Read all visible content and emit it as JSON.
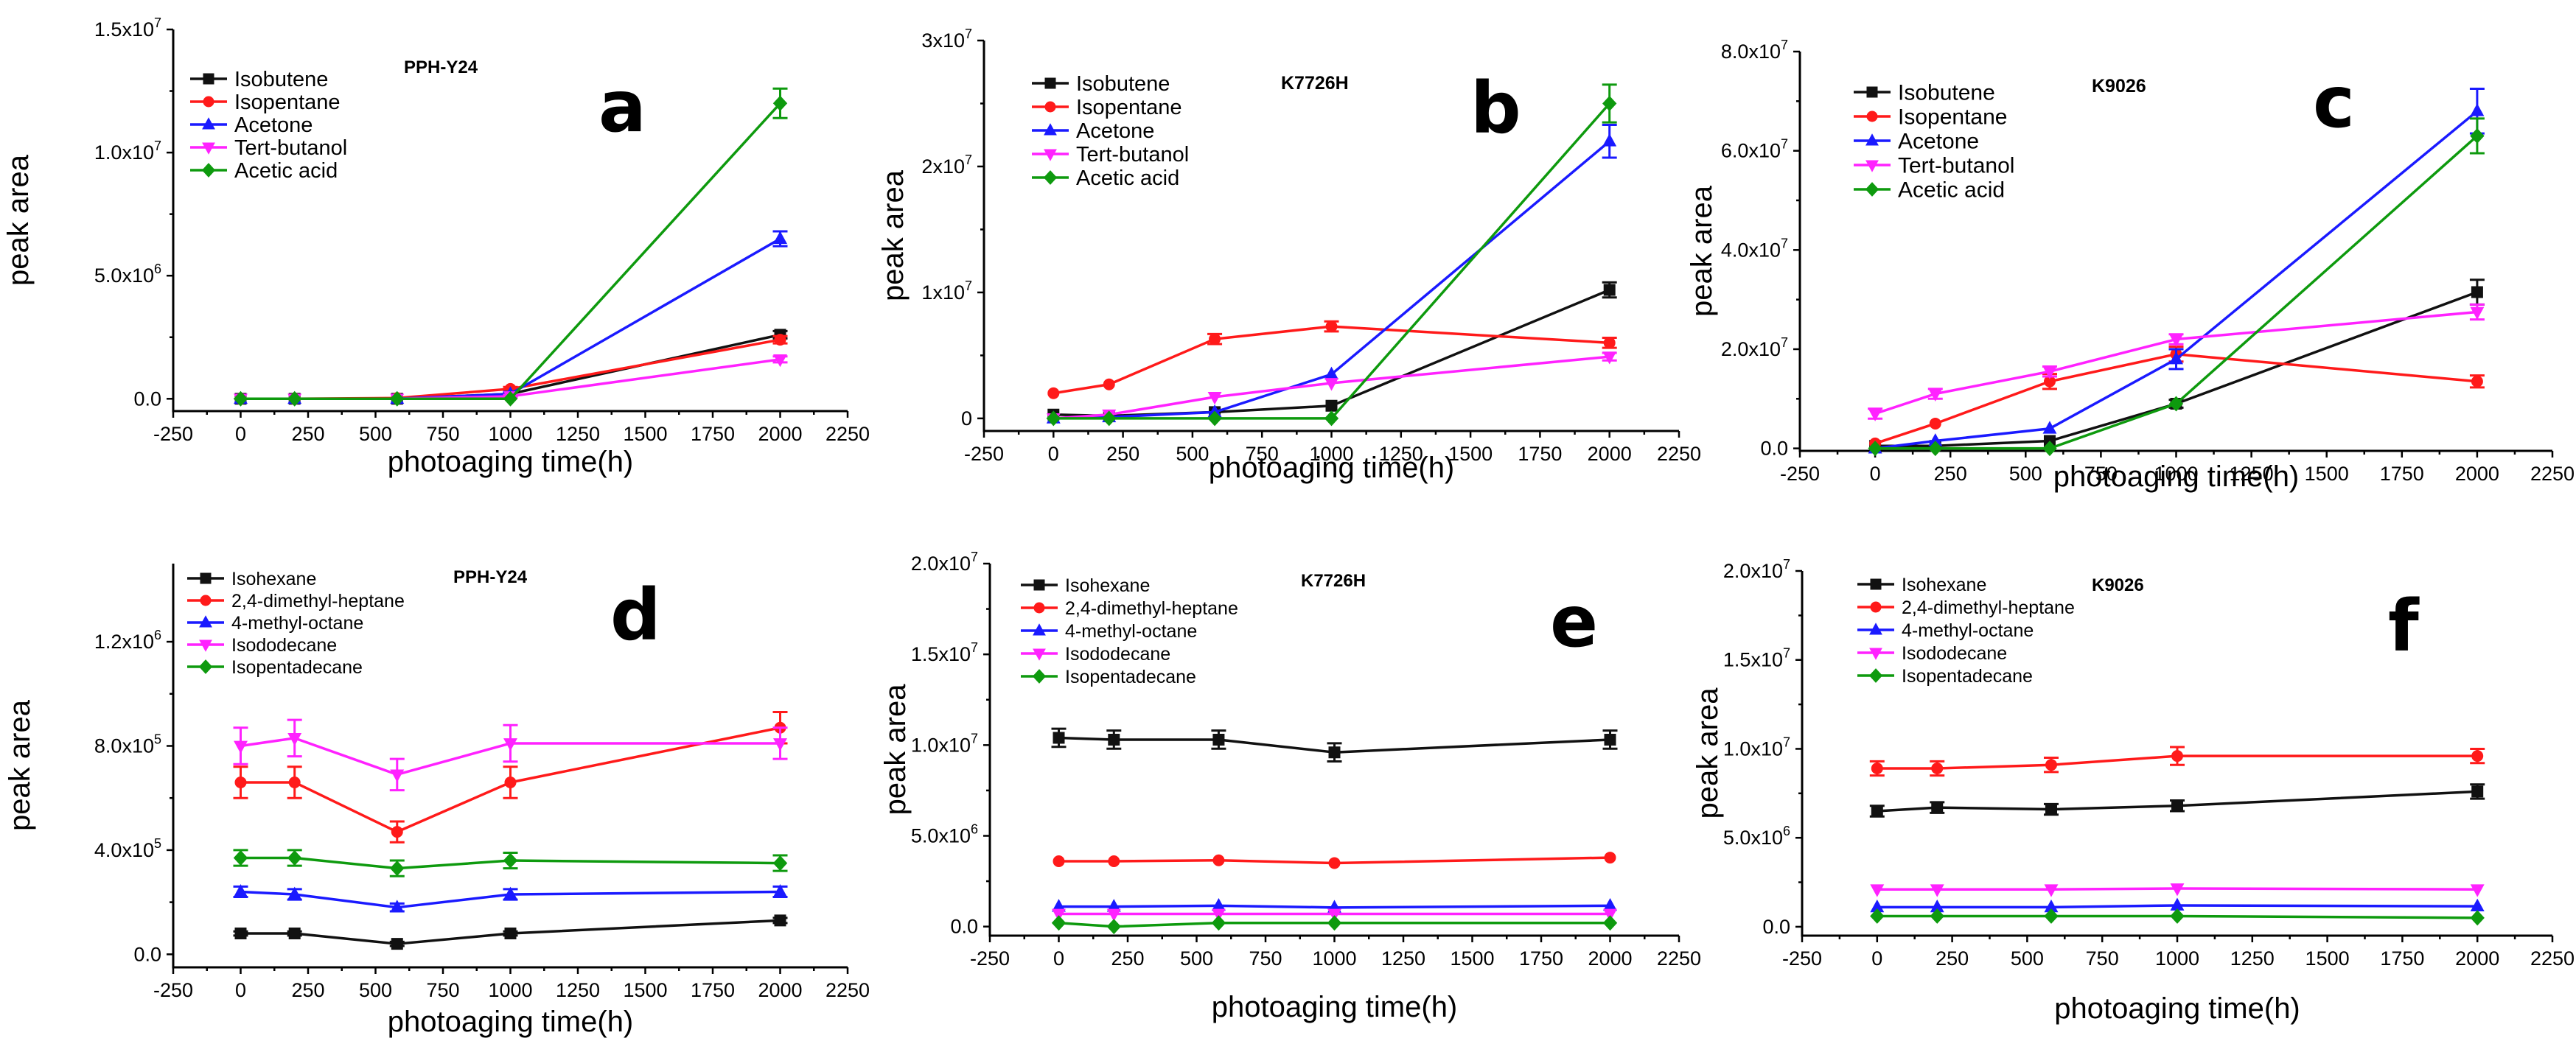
{
  "colors": {
    "black": "#111111",
    "red": "#ff1a1a",
    "blue": "#1a1aff",
    "magenta": "#ff22ff",
    "green": "#0e9a0e"
  },
  "chart_data": [
    {
      "type": "line",
      "panel_letter": "a",
      "sample": "PPH-Y24",
      "xlabel": "photoaging time(h)",
      "ylabel": "peak area",
      "xlim": [
        -250,
        2250
      ],
      "ylim": [
        -500000,
        15000000
      ],
      "x_ticks": [
        -250,
        0,
        250,
        500,
        750,
        1000,
        1250,
        1500,
        1750,
        2000,
        2250
      ],
      "x_tick_labels": [
        "-250",
        "0",
        "250",
        "500",
        "750",
        "1000",
        "1250",
        "1500",
        "1750",
        "2000",
        "2250"
      ],
      "y_ticks": [
        0,
        5000000,
        10000000,
        15000000
      ],
      "y_tick_labels": [
        {
          "m": "0.0",
          "e": ""
        },
        {
          "m": "5.0x10",
          "e": "6"
        },
        {
          "m": "1.0x10",
          "e": "7"
        },
        {
          "m": "1.5x10",
          "e": "7"
        }
      ],
      "x": [
        0,
        200,
        580,
        1000,
        2000
      ],
      "series": [
        {
          "name": "Isobutene",
          "color": "black",
          "marker": "square",
          "values": [
            0,
            0,
            0,
            200000,
            2600000
          ],
          "errors": [
            0,
            0,
            0,
            80000,
            150000
          ]
        },
        {
          "name": "Isopentane",
          "color": "red",
          "marker": "circle",
          "values": [
            0,
            0,
            30000,
            400000,
            2400000
          ],
          "errors": [
            0,
            0,
            0,
            80000,
            150000
          ]
        },
        {
          "name": "Acetone",
          "color": "blue",
          "marker": "triangle-up",
          "values": [
            0,
            0,
            0,
            200000,
            6500000
          ],
          "errors": [
            0,
            0,
            0,
            80000,
            300000
          ]
        },
        {
          "name": "Tert-butanol",
          "color": "magenta",
          "marker": "triangle-down",
          "values": [
            0,
            0,
            0,
            100000,
            1600000
          ],
          "errors": [
            0,
            0,
            0,
            60000,
            120000
          ]
        },
        {
          "name": "Acetic acid",
          "color": "green",
          "marker": "diamond",
          "values": [
            0,
            0,
            0,
            0,
            12000000
          ],
          "errors": [
            0,
            0,
            0,
            0,
            600000
          ]
        }
      ]
    },
    {
      "type": "line",
      "panel_letter": "b",
      "sample": "K7726H",
      "xlabel": "photoaging time(h)",
      "ylabel": "peak area",
      "xlim": [
        -250,
        2250
      ],
      "ylim": [
        -1000000,
        30000000
      ],
      "x_ticks": [
        -250,
        0,
        250,
        500,
        750,
        1000,
        1250,
        1500,
        1750,
        2000,
        2250
      ],
      "x_tick_labels": [
        "-250",
        "0",
        "250",
        "500",
        "750",
        "1000",
        "1250",
        "1500",
        "1750",
        "2000",
        "2250"
      ],
      "y_ticks": [
        0,
        10000000,
        20000000,
        30000000
      ],
      "y_tick_labels": [
        {
          "m": "0",
          "e": ""
        },
        {
          "m": "1x10",
          "e": "7"
        },
        {
          "m": "2x10",
          "e": "7"
        },
        {
          "m": "3x10",
          "e": "7"
        }
      ],
      "x": [
        0,
        200,
        580,
        1000,
        2000
      ],
      "series": [
        {
          "name": "Isobutene",
          "color": "black",
          "marker": "square",
          "values": [
            300000,
            200000,
            500000,
            1000000,
            10200000
          ],
          "errors": [
            0,
            0,
            0,
            0,
            600000
          ]
        },
        {
          "name": "Isopentane",
          "color": "red",
          "marker": "circle",
          "values": [
            2000000,
            2700000,
            6300000,
            7300000,
            6000000
          ],
          "errors": [
            0,
            0,
            400000,
            400000,
            400000
          ]
        },
        {
          "name": "Acetone",
          "color": "blue",
          "marker": "triangle-up",
          "values": [
            0,
            100000,
            500000,
            3500000,
            22000000
          ],
          "errors": [
            0,
            0,
            0,
            0,
            1300000
          ]
        },
        {
          "name": "Tert-butanol",
          "color": "magenta",
          "marker": "triangle-down",
          "values": [
            0,
            300000,
            1700000,
            2800000,
            4900000
          ],
          "errors": [
            0,
            0,
            0,
            0,
            300000
          ]
        },
        {
          "name": "Acetic acid",
          "color": "green",
          "marker": "diamond",
          "values": [
            0,
            0,
            0,
            0,
            25000000
          ],
          "errors": [
            0,
            0,
            0,
            0,
            1500000
          ]
        }
      ]
    },
    {
      "type": "line",
      "panel_letter": "c",
      "sample": "K9026",
      "xlabel": "photoaging time(h)",
      "ylabel": "peak area",
      "xlim": [
        -250,
        2250
      ],
      "ylim": [
        -500000,
        80000000
      ],
      "x_ticks": [
        -250,
        0,
        250,
        500,
        750,
        1000,
        1250,
        1500,
        1750,
        2000,
        2250
      ],
      "x_tick_labels": [
        "-250",
        "0",
        "250",
        "500",
        "750",
        "1000",
        "1250",
        "1500",
        "1750",
        "2000",
        "2250"
      ],
      "y_ticks": [
        0,
        20000000,
        40000000,
        60000000,
        80000000
      ],
      "y_tick_labels": [
        {
          "m": "0.0",
          "e": ""
        },
        {
          "m": "2.0x10",
          "e": "7"
        },
        {
          "m": "4.0x10",
          "e": "7"
        },
        {
          "m": "6.0x10",
          "e": "7"
        },
        {
          "m": "8.0x10",
          "e": "7"
        }
      ],
      "x": [
        0,
        200,
        580,
        1000,
        2000
      ],
      "series": [
        {
          "name": "Isobutene",
          "color": "black",
          "marker": "square",
          "values": [
            500000,
            500000,
            1500000,
            9000000,
            31500000
          ],
          "errors": [
            0,
            0,
            0,
            800000,
            2500000
          ]
        },
        {
          "name": "Isopentane",
          "color": "red",
          "marker": "circle",
          "values": [
            1000000,
            5000000,
            13500000,
            19000000,
            13500000
          ],
          "errors": [
            0,
            0,
            1500000,
            1500000,
            1200000
          ]
        },
        {
          "name": "Acetone",
          "color": "blue",
          "marker": "triangle-up",
          "values": [
            0,
            1500000,
            4000000,
            18000000,
            68000000
          ],
          "errors": [
            0,
            0,
            0,
            2000000,
            4500000
          ]
        },
        {
          "name": "Tert-butanol",
          "color": "magenta",
          "marker": "triangle-down",
          "values": [
            7000000,
            11000000,
            15500000,
            22000000,
            27500000
          ],
          "errors": [
            1000000,
            1000000,
            1000000,
            1000000,
            1500000
          ]
        },
        {
          "name": "Acetic acid",
          "color": "green",
          "marker": "diamond",
          "values": [
            0,
            0,
            0,
            9000000,
            63000000
          ],
          "errors": [
            0,
            0,
            0,
            0,
            3500000
          ]
        }
      ]
    },
    {
      "type": "line",
      "panel_letter": "d",
      "sample": "PPH-Y24",
      "xlabel": "photoaging time(h)",
      "ylabel": "peak area",
      "xlim": [
        -250,
        2250
      ],
      "ylim": [
        -50000,
        1500000
      ],
      "x_ticks": [
        -250,
        0,
        250,
        500,
        750,
        1000,
        1250,
        1500,
        1750,
        2000,
        2250
      ],
      "x_tick_labels": [
        "-250",
        "0",
        "250",
        "500",
        "750",
        "1000",
        "1250",
        "1500",
        "1750",
        "2000",
        "2250"
      ],
      "y_ticks": [
        0,
        400000,
        800000,
        1200000
      ],
      "y_tick_labels": [
        {
          "m": "0.0",
          "e": ""
        },
        {
          "m": "4.0x10",
          "e": "5"
        },
        {
          "m": "8.0x10",
          "e": "5"
        },
        {
          "m": "1.2x10",
          "e": "6"
        }
      ],
      "x": [
        0,
        200,
        580,
        1000,
        2000
      ],
      "series": [
        {
          "name": "Isohexane",
          "color": "black",
          "marker": "square",
          "values": [
            80000,
            80000,
            40000,
            80000,
            130000
          ],
          "errors": [
            8000,
            8000,
            8000,
            8000,
            10000
          ]
        },
        {
          "name": "2,4-dimethyl-heptane",
          "color": "red",
          "marker": "circle",
          "values": [
            660000,
            660000,
            470000,
            660000,
            870000
          ],
          "errors": [
            60000,
            60000,
            40000,
            60000,
            60000
          ]
        },
        {
          "name": "4-methyl-octane",
          "color": "blue",
          "marker": "triangle-up",
          "values": [
            240000,
            230000,
            180000,
            230000,
            240000
          ],
          "errors": [
            20000,
            20000,
            15000,
            20000,
            20000
          ]
        },
        {
          "name": "Isododecane",
          "color": "magenta",
          "marker": "triangle-down",
          "values": [
            800000,
            830000,
            690000,
            810000,
            810000
          ],
          "errors": [
            70000,
            70000,
            60000,
            70000,
            60000
          ]
        },
        {
          "name": "Isopentadecane",
          "color": "green",
          "marker": "diamond",
          "values": [
            370000,
            370000,
            330000,
            360000,
            350000
          ],
          "errors": [
            30000,
            30000,
            30000,
            30000,
            30000
          ]
        }
      ]
    },
    {
      "type": "line",
      "panel_letter": "e",
      "sample": "K7726H",
      "xlabel": "photoaging time(h)",
      "ylabel": "peak area",
      "xlim": [
        -250,
        2250
      ],
      "ylim": [
        -500000,
        20000000
      ],
      "x_ticks": [
        -250,
        0,
        250,
        500,
        750,
        1000,
        1250,
        1500,
        1750,
        2000,
        2250
      ],
      "x_tick_labels": [
        "-250",
        "0",
        "250",
        "500",
        "750",
        "1000",
        "1250",
        "1500",
        "1750",
        "2000",
        "2250"
      ],
      "y_ticks": [
        0,
        5000000,
        10000000,
        15000000,
        20000000
      ],
      "y_tick_labels": [
        {
          "m": "0.0",
          "e": ""
        },
        {
          "m": "5.0x10",
          "e": "6"
        },
        {
          "m": "1.0x10",
          "e": "7"
        },
        {
          "m": "1.5x10",
          "e": "7"
        },
        {
          "m": "2.0x10",
          "e": "7"
        }
      ],
      "x": [
        0,
        200,
        580,
        1000,
        2000
      ],
      "series": [
        {
          "name": "Isohexane",
          "color": "black",
          "marker": "square",
          "values": [
            10400000,
            10300000,
            10300000,
            9600000,
            10300000
          ],
          "errors": [
            500000,
            500000,
            500000,
            500000,
            500000
          ]
        },
        {
          "name": "2,4-dimethyl-heptane",
          "color": "red",
          "marker": "circle",
          "values": [
            3600000,
            3600000,
            3650000,
            3500000,
            3800000
          ],
          "errors": [
            0,
            0,
            0,
            0,
            0
          ]
        },
        {
          "name": "4-methyl-octane",
          "color": "blue",
          "marker": "triangle-up",
          "values": [
            1100000,
            1100000,
            1150000,
            1050000,
            1150000
          ],
          "errors": [
            0,
            0,
            0,
            0,
            0
          ]
        },
        {
          "name": "Isododecane",
          "color": "magenta",
          "marker": "triangle-down",
          "values": [
            700000,
            700000,
            700000,
            700000,
            700000
          ],
          "errors": [
            0,
            0,
            0,
            0,
            0
          ]
        },
        {
          "name": "Isopentadecane",
          "color": "green",
          "marker": "diamond",
          "values": [
            200000,
            0,
            200000,
            200000,
            200000
          ],
          "errors": [
            0,
            0,
            0,
            0,
            0
          ]
        }
      ]
    },
    {
      "type": "line",
      "panel_letter": "f",
      "sample": "K9026",
      "xlabel": "photoaging time(h)",
      "ylabel": "peak area",
      "xlim": [
        -250,
        2250
      ],
      "ylim": [
        -500000,
        20000000
      ],
      "x_ticks": [
        -250,
        0,
        250,
        500,
        750,
        1000,
        1250,
        1500,
        1750,
        2000,
        2250
      ],
      "x_tick_labels": [
        "-250",
        "0",
        "250",
        "500",
        "750",
        "1000",
        "1250",
        "1500",
        "1750",
        "2000",
        "2250"
      ],
      "y_ticks": [
        0,
        5000000,
        10000000,
        15000000,
        20000000
      ],
      "y_tick_labels": [
        {
          "m": "0.0",
          "e": ""
        },
        {
          "m": "5.0x10",
          "e": "6"
        },
        {
          "m": "1.0x10",
          "e": "7"
        },
        {
          "m": "1.5x10",
          "e": "7"
        },
        {
          "m": "2.0x10",
          "e": "7"
        }
      ],
      "x": [
        0,
        200,
        580,
        1000,
        2000
      ],
      "series": [
        {
          "name": "Isohexane",
          "color": "black",
          "marker": "square",
          "values": [
            6500000,
            6700000,
            6600000,
            6800000,
            7600000
          ],
          "errors": [
            300000,
            300000,
            300000,
            300000,
            400000
          ]
        },
        {
          "name": "2,4-dimethyl-heptane",
          "color": "red",
          "marker": "circle",
          "values": [
            8900000,
            8900000,
            9100000,
            9600000,
            9600000
          ],
          "errors": [
            400000,
            400000,
            400000,
            500000,
            400000
          ]
        },
        {
          "name": "4-methyl-octane",
          "color": "blue",
          "marker": "triangle-up",
          "values": [
            1100000,
            1100000,
            1100000,
            1200000,
            1150000
          ],
          "errors": [
            0,
            0,
            0,
            0,
            0
          ]
        },
        {
          "name": "Isododecane",
          "color": "magenta",
          "marker": "triangle-down",
          "values": [
            2100000,
            2100000,
            2100000,
            2150000,
            2100000
          ],
          "errors": [
            0,
            0,
            0,
            0,
            0
          ]
        },
        {
          "name": "Isopentadecane",
          "color": "green",
          "marker": "diamond",
          "values": [
            600000,
            600000,
            600000,
            600000,
            500000
          ],
          "errors": [
            0,
            0,
            0,
            0,
            0
          ]
        }
      ]
    }
  ]
}
